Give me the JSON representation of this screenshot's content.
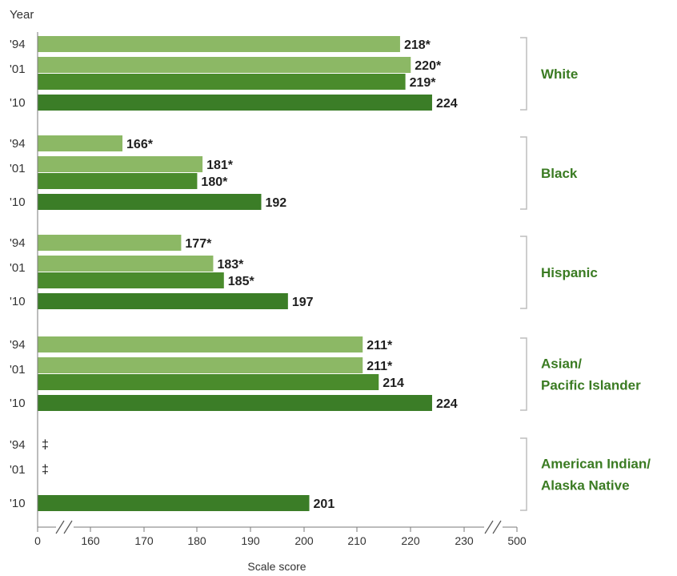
{
  "chart_data": {
    "type": "bar",
    "orientation": "horizontal",
    "ylabel": "Year",
    "xlabel": "Scale score",
    "x_ticks": [
      "0",
      "160",
      "170",
      "180",
      "190",
      "200",
      "210",
      "220",
      "230",
      "500"
    ],
    "xlim": [
      150,
      235
    ],
    "axis_break": true,
    "colors": {
      "1994": "#8cb865",
      "2001": "#8cb865",
      "2001b": "#4a8b2c",
      "2010": "#3b7d27",
      "group_label": "#3a7b22"
    },
    "groups": [
      {
        "name": "White",
        "rows": [
          {
            "year": "'94",
            "bars": [
              {
                "series": "1994",
                "value": 218,
                "label": "218*"
              }
            ]
          },
          {
            "year": "'01",
            "bars": [
              {
                "series": "2001",
                "value": 220,
                "label": "220*"
              },
              {
                "series": "2001b",
                "value": 219,
                "label": "219*"
              }
            ]
          },
          {
            "year": "'10",
            "bars": [
              {
                "series": "2010",
                "value": 224,
                "label": "224"
              }
            ]
          }
        ]
      },
      {
        "name": "Black",
        "rows": [
          {
            "year": "'94",
            "bars": [
              {
                "series": "1994",
                "value": 166,
                "label": "166*"
              }
            ]
          },
          {
            "year": "'01",
            "bars": [
              {
                "series": "2001",
                "value": 181,
                "label": "181*"
              },
              {
                "series": "2001b",
                "value": 180,
                "label": "180*"
              }
            ]
          },
          {
            "year": "'10",
            "bars": [
              {
                "series": "2010",
                "value": 192,
                "label": "192"
              }
            ]
          }
        ]
      },
      {
        "name": "Hispanic",
        "rows": [
          {
            "year": "'94",
            "bars": [
              {
                "series": "1994",
                "value": 177,
                "label": "177*"
              }
            ]
          },
          {
            "year": "'01",
            "bars": [
              {
                "series": "2001",
                "value": 183,
                "label": "183*"
              },
              {
                "series": "2001b",
                "value": 185,
                "label": "185*"
              }
            ]
          },
          {
            "year": "'10",
            "bars": [
              {
                "series": "2010",
                "value": 197,
                "label": "197"
              }
            ]
          }
        ]
      },
      {
        "name": "Asian/\nPacific Islander",
        "rows": [
          {
            "year": "'94",
            "bars": [
              {
                "series": "1994",
                "value": 211,
                "label": "211*"
              }
            ]
          },
          {
            "year": "'01",
            "bars": [
              {
                "series": "2001",
                "value": 211,
                "label": "211*"
              },
              {
                "series": "2001b",
                "value": 214,
                "label": "214"
              }
            ]
          },
          {
            "year": "'10",
            "bars": [
              {
                "series": "2010",
                "value": 224,
                "label": "224"
              }
            ]
          }
        ]
      },
      {
        "name": "American Indian/\nAlaska Native",
        "rows": [
          {
            "year": "'94",
            "bars": [],
            "note": "‡"
          },
          {
            "year": "'01",
            "bars": [],
            "note": "‡"
          },
          {
            "year": "'10",
            "bars": [
              {
                "series": "2010",
                "value": 201,
                "label": "201"
              }
            ]
          }
        ]
      }
    ]
  }
}
